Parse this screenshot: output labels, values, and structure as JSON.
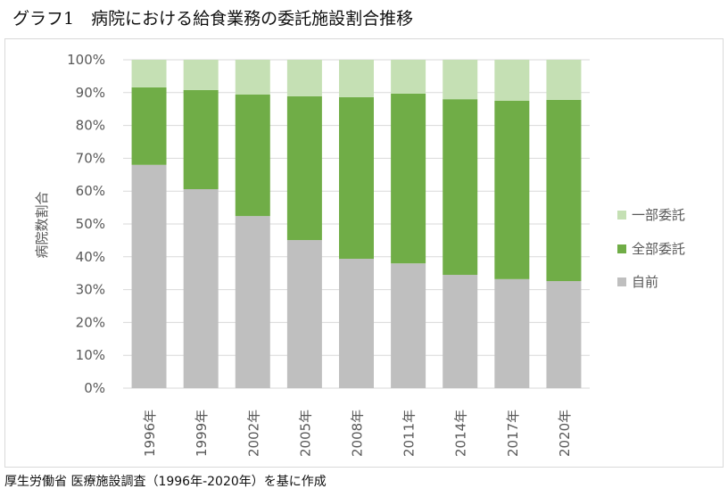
{
  "chart_data": {
    "type": "bar",
    "stacked": true,
    "title": "グラフ1　病院における給食業務の委託施設割合推移",
    "xlabel": "",
    "ylabel": "病院数割合",
    "ylim": [
      0,
      100
    ],
    "yticks": [
      "0%",
      "10%",
      "20%",
      "30%",
      "40%",
      "50%",
      "60%",
      "70%",
      "80%",
      "90%",
      "100%"
    ],
    "grid": true,
    "legend_position": "right",
    "categories": [
      "1996年",
      "1999年",
      "2002年",
      "2005年",
      "2008年",
      "2011年",
      "2014年",
      "2017年",
      "2020年"
    ],
    "series": [
      {
        "name": "自前",
        "color": "#bfbfbf",
        "values": [
          68.0,
          60.6,
          52.4,
          45.1,
          39.4,
          38.0,
          34.5,
          33.2,
          32.6
        ]
      },
      {
        "name": "全部委託",
        "color": "#70ad47",
        "values": [
          23.6,
          30.2,
          37.0,
          43.8,
          49.2,
          51.7,
          53.5,
          54.3,
          55.2
        ]
      },
      {
        "name": "一部委託",
        "color": "#c5e0b4",
        "values": [
          8.4,
          9.2,
          10.6,
          11.1,
          11.4,
          10.3,
          12.0,
          12.5,
          12.2
        ]
      }
    ],
    "source": "厚生労働省 医療施設調査（1996年-2020年）を基に作成"
  }
}
